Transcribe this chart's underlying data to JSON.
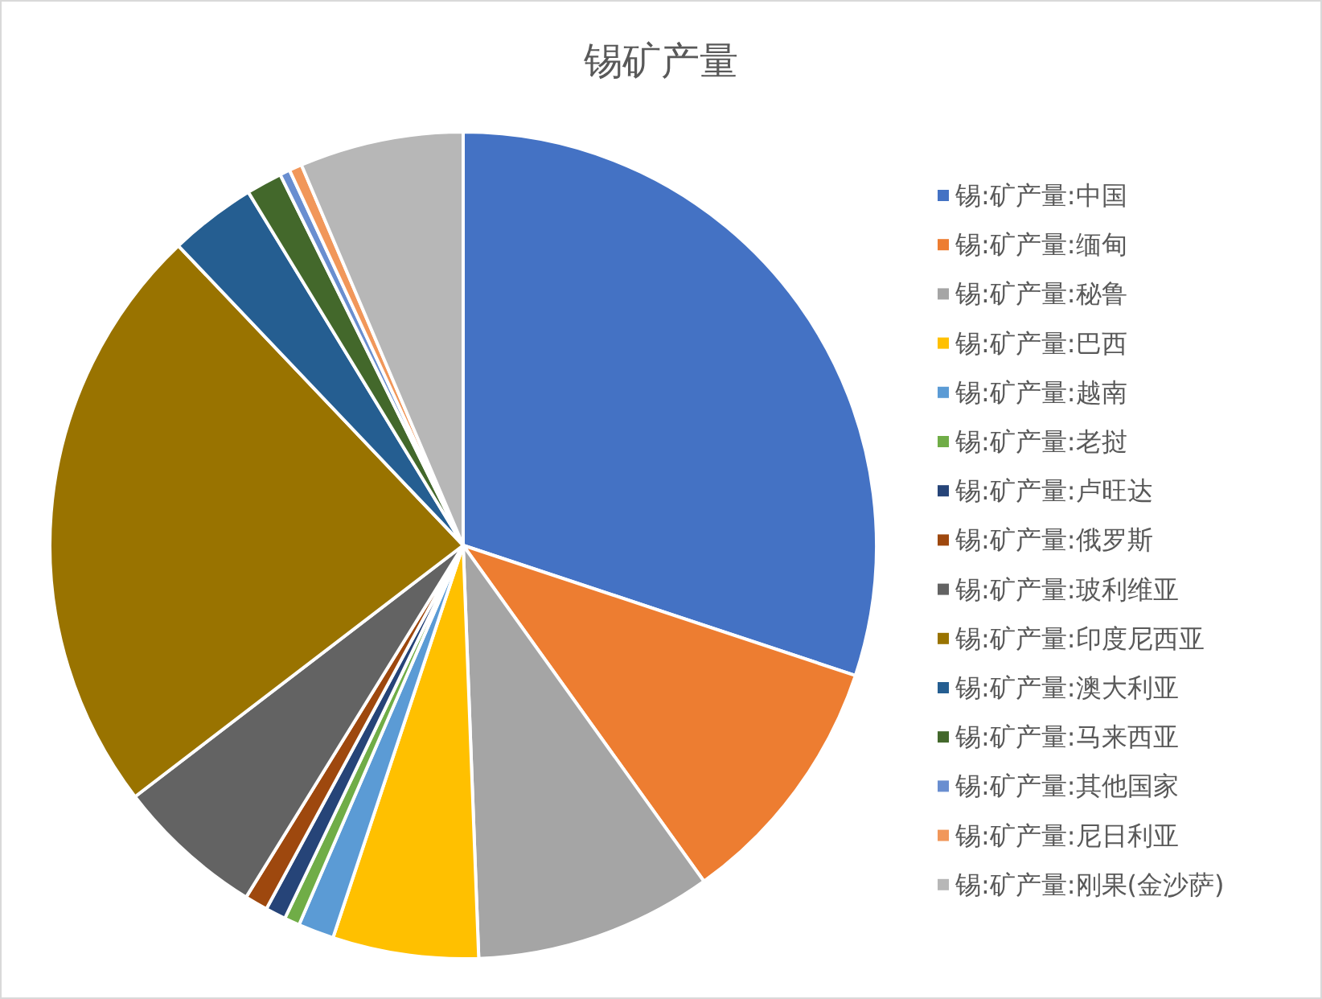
{
  "chart_data": {
    "type": "pie",
    "title": "锡矿产量",
    "legend": "right",
    "categories": [
      "锡:矿产量:中国",
      "锡:矿产量:缅甸",
      "锡:矿产量:秘鲁",
      "锡:矿产量:巴西",
      "锡:矿产量:越南",
      "锡:矿产量:老挝",
      "锡:矿产量:卢旺达",
      "锡:矿产量:俄罗斯",
      "锡:矿产量:玻利维亚",
      "锡:矿产量:印度尼西亚",
      "锡:矿产量:澳大利亚",
      "锡:矿产量:马来西亚",
      "锡:矿产量:其他国家",
      "锡:矿产量:尼日利亚",
      "锡:矿产量:刚果(金沙萨)"
    ],
    "values": [
      30.1,
      10,
      9.3,
      5.7,
      1.4,
      0.6,
      0.8,
      0.9,
      5.8,
      23.3,
      3.4,
      1.4,
      0.4,
      0.5,
      6.4
    ],
    "colors": [
      "#4472c4",
      "#ed7d31",
      "#a5a5a5",
      "#ffc000",
      "#5b9bd5",
      "#70ad47",
      "#264478",
      "#9e480e",
      "#636363",
      "#997300",
      "#255e91",
      "#43682b",
      "#698ed0",
      "#f1975a",
      "#b7b7b7"
    ]
  }
}
